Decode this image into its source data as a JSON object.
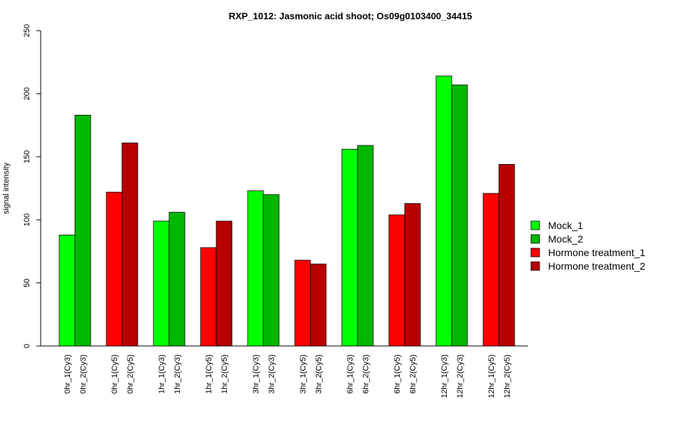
{
  "chart_data": {
    "type": "bar",
    "title": "RXP_1012: Jasmonic acid shoot; Os09g0103400_34415",
    "ylabel": "signal intensity",
    "xlabel": "",
    "ylim": [
      0,
      250
    ],
    "yticks": [
      "0",
      "50",
      "100",
      "150",
      "200",
      "250"
    ],
    "legend_position": "right",
    "legend": [
      {
        "name": "Mock_1",
        "color": "#00ff00"
      },
      {
        "name": "Mock_2",
        "color": "#00b800"
      },
      {
        "name": "Hormone treatment_1",
        "color": "#ff0000"
      },
      {
        "name": "Hormone treatment_2",
        "color": "#b80000"
      }
    ],
    "categories": [
      "0hr_1(Cy3)",
      "0hr_2(Cy3)",
      "0hr_1(Cy5)",
      "0hr_2(Cy5)",
      "1hr_1(Cy3)",
      "1hr_2(Cy3)",
      "1hr_1(Cy5)",
      "1hr_2(Cy5)",
      "3hr_1(Cy3)",
      "3hr_2(Cy3)",
      "3hr_1(Cy5)",
      "3hr_2(Cy5)",
      "6hr_1(Cy3)",
      "6hr_2(Cy3)",
      "6hr_1(Cy5)",
      "6hr_2(Cy5)",
      "12hr_1(Cy3)",
      "12hr_2(Cy3)",
      "12hr_1(Cy5)",
      "12hr_2(Cy5)"
    ],
    "values": [
      88,
      183,
      122,
      161,
      99,
      106,
      78,
      99,
      123,
      120,
      68,
      65,
      156,
      159,
      104,
      113,
      214,
      207,
      121,
      144
    ],
    "bar_groups": [
      "Mock_1",
      "Mock_2",
      "Hormone treatment_1",
      "Hormone treatment_2",
      "Mock_1",
      "Mock_2",
      "Hormone treatment_1",
      "Hormone treatment_2",
      "Mock_1",
      "Mock_2",
      "Hormone treatment_1",
      "Hormone treatment_2",
      "Mock_1",
      "Mock_2",
      "Hormone treatment_1",
      "Hormone treatment_2",
      "Mock_1",
      "Mock_2",
      "Hormone treatment_1",
      "Hormone treatment_2"
    ]
  }
}
